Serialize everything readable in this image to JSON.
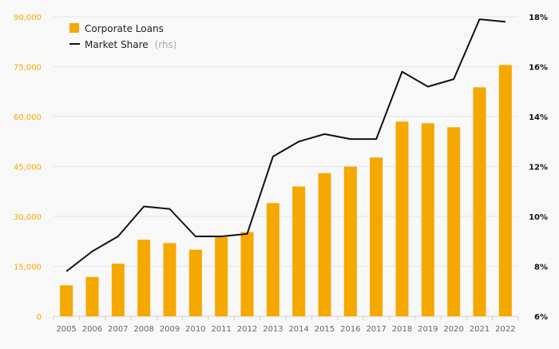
{
  "chart_data": {
    "type": "bar",
    "categories": [
      "2005",
      "2006",
      "2007",
      "2008",
      "2009",
      "2010",
      "2011",
      "2012",
      "2013",
      "2014",
      "2015",
      "2016",
      "2017",
      "2018",
      "2019",
      "2020",
      "2021",
      "2022"
    ],
    "series": [
      {
        "name": "Corporate Loans",
        "type": "bar",
        "axis": "left",
        "color": "#f5a800",
        "values": [
          9300,
          11800,
          15800,
          23000,
          22000,
          20000,
          23800,
          25300,
          34000,
          39000,
          43000,
          45000,
          47700,
          58500,
          58000,
          56800,
          68800,
          75500
        ]
      },
      {
        "name": "Market Share",
        "note": "(rhs)",
        "type": "line",
        "axis": "right",
        "color": "#111111",
        "values": [
          7.8,
          8.6,
          9.2,
          10.4,
          10.3,
          9.2,
          9.2,
          9.3,
          12.4,
          13.0,
          13.3,
          13.1,
          13.1,
          15.8,
          15.2,
          15.5,
          17.9,
          17.8
        ]
      }
    ],
    "y_left": {
      "range": [
        0,
        90000
      ],
      "ticks": [
        0,
        15000,
        30000,
        45000,
        60000,
        75000,
        90000
      ],
      "tick_labels": [
        "0",
        "15,000",
        "30,000",
        "45,000",
        "60,000",
        "75,000",
        "90,000"
      ],
      "color": "#f5a800"
    },
    "y_right": {
      "range": [
        6,
        18
      ],
      "ticks": [
        6,
        8,
        10,
        12,
        14,
        16,
        18
      ],
      "tick_labels": [
        "6%",
        "8%",
        "10%",
        "12%",
        "14%",
        "16%",
        "18%"
      ],
      "color": "#111111"
    },
    "grid": true,
    "legend": "top-left"
  }
}
